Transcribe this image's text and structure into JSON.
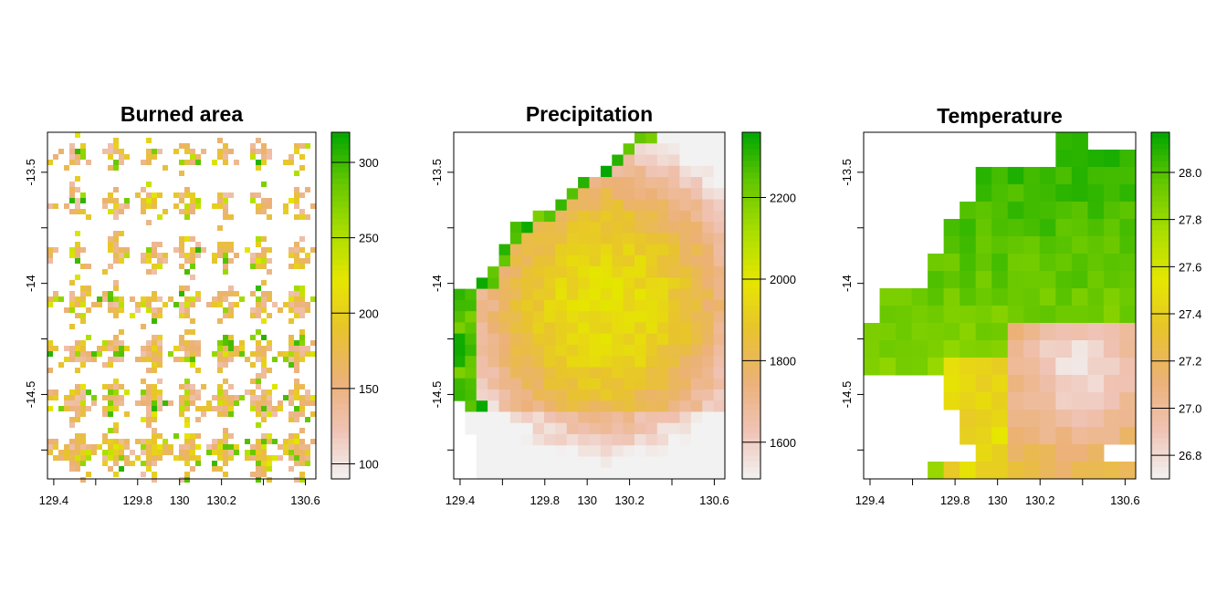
{
  "chart_data": [
    {
      "type": "heatmap",
      "title": "Burned area",
      "x_ticks": [
        "129.4",
        "129.8",
        "130",
        "130.2",
        "130.6"
      ],
      "x_tick_values": [
        129.4,
        129.8,
        130.0,
        130.2,
        130.6
      ],
      "y_ticks": [
        "-13.5",
        "-14",
        "-14.5"
      ],
      "y_tick_values": [
        -13.5,
        -14.0,
        -14.5
      ],
      "xlim": [
        129.37,
        130.65
      ],
      "ylim": [
        -14.88,
        -13.32
      ],
      "legend_ticks": [
        "300",
        "250",
        "200",
        "150",
        "100"
      ],
      "legend_tick_values": [
        300,
        250,
        200,
        150,
        100
      ],
      "legend_range": [
        90,
        320
      ],
      "legend_position": "right",
      "palette": [
        "#F2F2F2",
        "#EFC2B3",
        "#ECB176",
        "#E8C32E",
        "#E6E600",
        "#A9DE00",
        "#63C600",
        "#00A600"
      ],
      "pattern": "patchy"
    },
    {
      "type": "heatmap",
      "title": "Precipitation",
      "x_ticks": [
        "129.4",
        "129.8",
        "130",
        "130.2",
        "130.6"
      ],
      "x_tick_values": [
        129.4,
        129.8,
        130.0,
        130.2,
        130.6
      ],
      "y_ticks": [
        "-13.5",
        "-14",
        "-14.5"
      ],
      "y_tick_values": [
        -13.5,
        -14.0,
        -14.5
      ],
      "xlim": [
        129.37,
        130.65
      ],
      "ylim": [
        -14.88,
        -13.32
      ],
      "legend_ticks": [
        "2200",
        "2000",
        "1800",
        "1600"
      ],
      "legend_tick_values": [
        2200,
        2000,
        1800,
        1600
      ],
      "legend_range": [
        1510,
        2360
      ],
      "legend_position": "right",
      "palette": [
        "#F2F2F2",
        "#EFC2B3",
        "#ECB176",
        "#E8C32E",
        "#E6E600",
        "#A9DE00",
        "#63C600",
        "#00A600"
      ],
      "grid": [
        "..........................**iiiiiiiiiiiiiiiiiiiiiiiiiiiiiii",
        "........................*iiiiiiiiiiiiiiiiiiiiiiiiiiiiiiiiii",
        "................HHtt.h*iiiiiiiiiiiiiiiiiiiiiiiiiiiiiiiiiiii",
        ".............*iiiiiiiiiiiiiiiiiiiiiiiiiiiiiiiiiiiiiiiiiiiii",
        "............HHiiiiiiiiiiiiiiiiiiiiiiiiiiiiiiiiiiiiiiiiiiiii",
        "..........HHiiiiiiiiiiiiiiiiiiiiiiiiiiiiiiiiiiiiiiiiiiiiiii",
        "........HHiiiiiiiiiiiiiiiiiiiiiiiiiiiiiiiiiiiiiiiiiiiiiiiii",
        "......Hiiiiiiiiiiiiiiiiiiiiiiiiiiiiiiiiiiiiiiiiiiiiiiiiiiii",
        "..HHiiiiiiiiiiiiiiiiiiiiiiiiiiiiiiiiiiiiiiiiiiiiiiiiiiiiiii",
        "HHiiiiiiiiiiiiiiiiiiiiiiiiiiiiiiiiiiiiiiiiiiiiiiiiiiiiiiiii",
        "iiiiiiiiiiiiiiiiiiiiiiiiiiiiiiiiiiiiiiiiiiiiiiiiiiiiiiiiiii",
        "iiiiiiiiiiiiiiiiiiiiiiiiiiiiiiiiiiiiiiiiiiiiiiiiiiiiiiiiiii"
      ]
    },
    {
      "type": "heatmap",
      "title": "Temperature",
      "x_ticks": [
        "129.4",
        "129.8",
        "130",
        "130.2",
        "130.6"
      ],
      "x_tick_values": [
        129.4,
        129.8,
        130.0,
        130.2,
        130.6
      ],
      "y_ticks": [
        "-13.5",
        "-14",
        "-14.5"
      ],
      "y_tick_values": [
        -13.5,
        -14.0,
        -14.5
      ],
      "xlim": [
        129.37,
        130.65
      ],
      "ylim": [
        -14.88,
        -13.32
      ],
      "legend_ticks": [
        "28.0",
        "27.8",
        "27.6",
        "27.4",
        "27.2",
        "27.0",
        "26.8"
      ],
      "legend_tick_values": [
        28.0,
        27.8,
        27.6,
        27.4,
        27.2,
        27.0,
        26.8
      ],
      "legend_range": [
        26.7,
        28.17
      ],
      "legend_position": "right",
      "palette": [
        "#F2F2F2",
        "#EFC2B3",
        "#ECB176",
        "#E8C32E",
        "#E6E600",
        "#A9DE00",
        "#63C600",
        "#00A600"
      ]
    }
  ]
}
